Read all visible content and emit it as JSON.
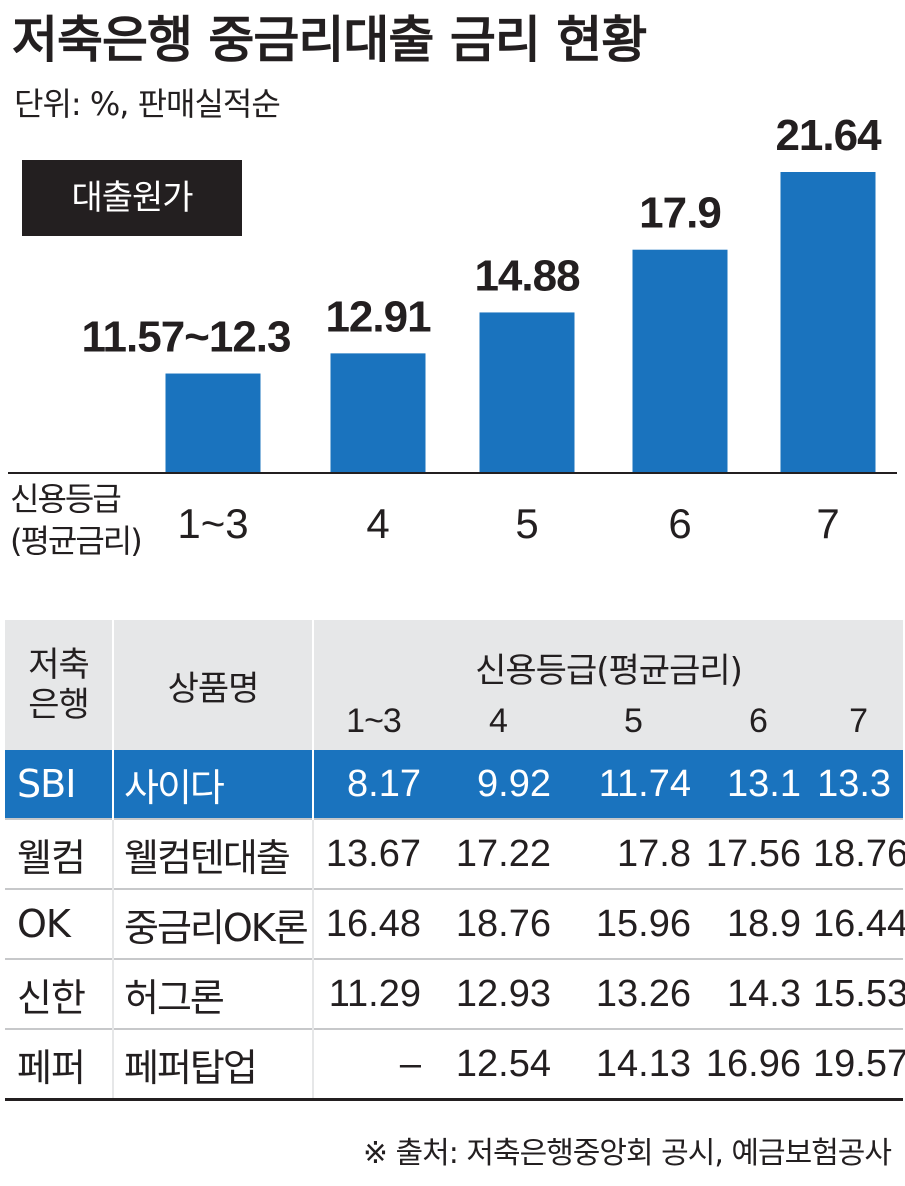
{
  "title": "저축은행 중금리대출 금리 현황",
  "unit": "단위:  %, 판매실적순",
  "tag": "대출원가",
  "chart_data": {
    "type": "bar",
    "xlabel": [
      "신용등급",
      "(평균금리)"
    ],
    "categories": [
      "1~3",
      "4",
      "5",
      "6",
      "7"
    ],
    "values": [
      11.94,
      12.91,
      14.88,
      17.9,
      21.64
    ],
    "value_labels": [
      "11.57~12.3",
      "12.91",
      "14.88",
      "17.9",
      "21.64"
    ],
    "bar_color": "#1a73be"
  },
  "table": {
    "header": {
      "bank": [
        "저축",
        "은행"
      ],
      "product": "상품명",
      "group": "신용등급(평균금리)",
      "grades": [
        "1~3",
        "4",
        "5",
        "6",
        "7"
      ]
    },
    "rows": [
      {
        "bank": "SBI",
        "product": "사이다",
        "values": [
          "8.17",
          "9.92",
          "11.74",
          "13.1",
          "13.3"
        ],
        "highlight": true
      },
      {
        "bank": "웰컴",
        "product": "웰컴텐대출",
        "values": [
          "13.67",
          "17.22",
          "17.8",
          "17.56",
          "18.76"
        ],
        "highlight": false
      },
      {
        "bank": "OK",
        "product": "중금리OK론",
        "values": [
          "16.48",
          "18.76",
          "15.96",
          "18.9",
          "16.44"
        ],
        "highlight": false
      },
      {
        "bank": "신한",
        "product": "허그론",
        "values": [
          "11.29",
          "12.93",
          "13.26",
          "14.3",
          "15.53"
        ],
        "highlight": false
      },
      {
        "bank": "페퍼",
        "product": "페퍼탑업",
        "values": [
          "–",
          "12.54",
          "14.13",
          "16.96",
          "19.57"
        ],
        "highlight": false
      }
    ],
    "highlight_color": "#1a73be",
    "header_bg": "#e6e7e8"
  },
  "source": "※ 출처: 저축은행중앙회 공시, 예금보험공사"
}
